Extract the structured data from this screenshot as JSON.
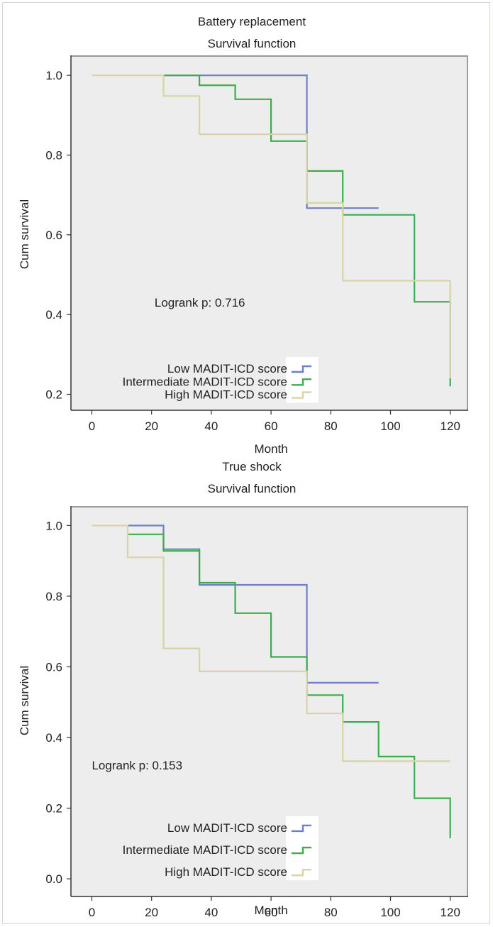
{
  "chart_data": [
    {
      "type": "line",
      "step": true,
      "title": "Battery replacement",
      "subtitle": "Survival function",
      "xlabel": "Month",
      "ylabel": "Cum survival",
      "xlim": [
        -7,
        126
      ],
      "ylim": [
        0.16,
        1.05
      ],
      "xticks": [
        0,
        20,
        40,
        60,
        80,
        100,
        120
      ],
      "yticks": [
        0.2,
        0.4,
        0.6,
        0.8,
        1.0
      ],
      "ytick_labels": [
        "0.2",
        "0.4",
        "0.6",
        "0.8",
        "1.0"
      ],
      "annotation": "Logrank p: 0.716",
      "annotation_pos": [
        21,
        0.42
      ],
      "legend_pos": [
        0.57,
        0.265,
        0.2
      ],
      "series": [
        {
          "name": "Low MADIT-ICD score",
          "color": "#6f7fc6",
          "points": [
            [
              24,
              1.0
            ],
            [
              72,
              1.0
            ],
            [
              72,
              0.667
            ],
            [
              96,
              0.667
            ]
          ]
        },
        {
          "name": "Intermediate MADIT-ICD score",
          "color": "#3cad4e",
          "points": [
            [
              24,
              1.0
            ],
            [
              36,
              1.0
            ],
            [
              36,
              0.975
            ],
            [
              48,
              0.975
            ],
            [
              48,
              0.94
            ],
            [
              60,
              0.94
            ],
            [
              60,
              0.835
            ],
            [
              72,
              0.835
            ],
            [
              72,
              0.76
            ],
            [
              84,
              0.76
            ],
            [
              84,
              0.65
            ],
            [
              108,
              0.65
            ],
            [
              108,
              0.432
            ],
            [
              120,
              0.432
            ],
            [
              120,
              0.22
            ]
          ]
        },
        {
          "name": "High MADIT-ICD score",
          "color": "#d8d4a6",
          "points": [
            [
              0,
              1.0
            ],
            [
              24,
              1.0
            ],
            [
              24,
              0.948
            ],
            [
              36,
              0.948
            ],
            [
              36,
              0.852
            ],
            [
              72,
              0.852
            ],
            [
              72,
              0.68
            ],
            [
              84,
              0.68
            ],
            [
              84,
              0.485
            ],
            [
              120,
              0.485
            ],
            [
              120,
              0.24
            ]
          ]
        }
      ]
    },
    {
      "type": "line",
      "step": true,
      "title": "True shock",
      "subtitle": "Survival function",
      "xlabel": "Month",
      "ylabel": "Cum survival",
      "xlim": [
        -7,
        126
      ],
      "ylim": [
        -0.05,
        1.055
      ],
      "xticks": [
        0,
        20,
        40,
        60,
        80,
        100,
        120
      ],
      "yticks": [
        0.0,
        0.2,
        0.4,
        0.6,
        0.8,
        1.0
      ],
      "ytick_labels": [
        "0.0",
        "0.2",
        "0.4",
        "0.6",
        "0.8",
        "1.0"
      ],
      "annotation": "Logrank p: 0.153",
      "annotation_pos": [
        0,
        0.31
      ],
      "legend_pos": [
        0.57,
        0.145,
        0.02
      ],
      "series": [
        {
          "name": "Low MADIT-ICD score",
          "color": "#6f7fc6",
          "points": [
            [
              12,
              1.0
            ],
            [
              24,
              1.0
            ],
            [
              24,
              0.933
            ],
            [
              36,
              0.933
            ],
            [
              36,
              0.832
            ],
            [
              72,
              0.832
            ],
            [
              72,
              0.555
            ],
            [
              96,
              0.555
            ]
          ]
        },
        {
          "name": "Intermediate MADIT-ICD score",
          "color": "#3cad4e",
          "points": [
            [
              12,
              0.975
            ],
            [
              24,
              0.975
            ],
            [
              24,
              0.928
            ],
            [
              36,
              0.928
            ],
            [
              36,
              0.838
            ],
            [
              48,
              0.838
            ],
            [
              48,
              0.752
            ],
            [
              60,
              0.752
            ],
            [
              60,
              0.628
            ],
            [
              72,
              0.628
            ],
            [
              72,
              0.52
            ],
            [
              84,
              0.52
            ],
            [
              84,
              0.444
            ],
            [
              96,
              0.444
            ],
            [
              96,
              0.346
            ],
            [
              108,
              0.346
            ],
            [
              108,
              0.228
            ],
            [
              120,
              0.228
            ],
            [
              120,
              0.115
            ]
          ]
        },
        {
          "name": "High MADIT-ICD score",
          "color": "#d8d4a6",
          "points": [
            [
              0,
              1.0
            ],
            [
              12,
              1.0
            ],
            [
              12,
              0.91
            ],
            [
              24,
              0.91
            ],
            [
              24,
              0.652
            ],
            [
              36,
              0.652
            ],
            [
              36,
              0.587
            ],
            [
              72,
              0.587
            ],
            [
              72,
              0.468
            ],
            [
              84,
              0.468
            ],
            [
              84,
              0.333
            ],
            [
              120,
              0.333
            ]
          ]
        }
      ]
    }
  ]
}
